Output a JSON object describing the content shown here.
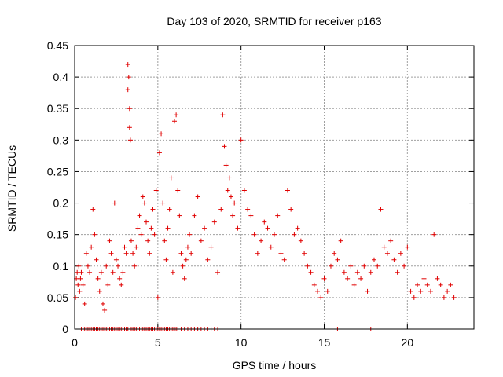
{
  "chart_data": {
    "type": "scatter",
    "title": "Day 103 of 2020, SRMTID for receiver p163",
    "xlabel": "GPS time / hours",
    "ylabel": "SRMTID / TECUs",
    "xlim": [
      0,
      24
    ],
    "ylim": [
      0,
      0.45
    ],
    "xticks": [
      0,
      5,
      10,
      15,
      20
    ],
    "yticks": [
      0,
      0.05,
      0.1,
      0.15,
      0.2,
      0.25,
      0.3,
      0.35,
      0.4,
      0.45
    ],
    "xtick_labels": [
      "0",
      "5",
      "10",
      "15",
      "20"
    ],
    "ytick_labels": [
      "0",
      "0.05",
      "0.1",
      "0.15",
      "0.2",
      "0.25",
      "0.3",
      "0.35",
      "0.4",
      "0.45"
    ],
    "grid": true,
    "marker": "+",
    "color": "#e00000",
    "series": [
      {
        "name": "p163",
        "x": [
          0.05,
          0.1,
          0.15,
          0.2,
          0.25,
          0.3,
          0.35,
          0.4,
          0.5,
          0.6,
          0.7,
          0.8,
          0.9,
          1.0,
          1.1,
          1.2,
          1.3,
          1.4,
          1.5,
          1.6,
          1.7,
          1.8,
          1.9,
          2.0,
          2.1,
          2.2,
          2.3,
          2.4,
          2.5,
          2.6,
          2.7,
          2.8,
          2.9,
          3.0,
          3.1,
          3.2,
          3.2,
          3.25,
          3.3,
          3.3,
          3.35,
          3.4,
          3.5,
          3.6,
          3.7,
          3.8,
          3.9,
          4.0,
          4.1,
          4.2,
          4.3,
          4.4,
          4.5,
          4.6,
          4.7,
          4.8,
          4.9,
          5.0,
          5.1,
          5.2,
          5.3,
          5.4,
          5.5,
          5.6,
          5.7,
          5.8,
          5.9,
          6.0,
          6.1,
          6.2,
          6.3,
          6.4,
          6.5,
          6.6,
          6.7,
          6.8,
          6.9,
          7.0,
          7.2,
          7.4,
          7.6,
          7.8,
          8.0,
          8.2,
          8.4,
          8.6,
          8.8,
          8.9,
          9.0,
          9.1,
          9.2,
          9.3,
          9.4,
          9.5,
          9.6,
          9.8,
          10.0,
          10.2,
          10.4,
          10.6,
          10.8,
          11.0,
          11.2,
          11.4,
          11.6,
          11.8,
          12.0,
          12.2,
          12.4,
          12.6,
          12.8,
          13.0,
          13.2,
          13.4,
          13.6,
          13.8,
          14.0,
          14.2,
          14.4,
          14.6,
          14.8,
          15.0,
          15.2,
          15.4,
          15.6,
          15.8,
          16.0,
          16.2,
          16.4,
          16.6,
          16.8,
          17.0,
          17.2,
          17.4,
          17.6,
          17.8,
          18.0,
          18.2,
          18.4,
          18.6,
          18.8,
          19.0,
          19.2,
          19.4,
          19.6,
          19.8,
          20.0,
          20.2,
          20.4,
          20.6,
          20.8,
          21.0,
          21.2,
          21.4,
          21.6,
          21.8,
          22.0,
          22.2,
          22.4,
          22.6,
          22.8
        ],
        "y": [
          0.05,
          0.08,
          0.09,
          0.07,
          0.1,
          0.06,
          0.08,
          0.09,
          0.07,
          0.04,
          0.12,
          0.1,
          0.09,
          0.13,
          0.19,
          0.15,
          0.11,
          0.08,
          0.06,
          0.09,
          0.04,
          0.03,
          0.1,
          0.07,
          0.14,
          0.12,
          0.09,
          0.2,
          0.11,
          0.1,
          0.08,
          0.07,
          0.09,
          0.13,
          0.12,
          0.38,
          0.42,
          0.4,
          0.35,
          0.32,
          0.3,
          0.14,
          0.12,
          0.1,
          0.13,
          0.16,
          0.18,
          0.15,
          0.21,
          0.2,
          0.17,
          0.14,
          0.12,
          0.16,
          0.19,
          0.15,
          0.22,
          0.05,
          0.28,
          0.31,
          0.2,
          0.14,
          0.11,
          0.16,
          0.19,
          0.24,
          0.09,
          0.33,
          0.34,
          0.22,
          0.18,
          0.12,
          0.1,
          0.08,
          0.11,
          0.13,
          0.15,
          0.12,
          0.18,
          0.21,
          0.14,
          0.16,
          0.11,
          0.13,
          0.17,
          0.09,
          0.19,
          0.34,
          0.29,
          0.26,
          0.22,
          0.24,
          0.21,
          0.18,
          0.2,
          0.16,
          0.3,
          0.22,
          0.19,
          0.18,
          0.15,
          0.12,
          0.14,
          0.17,
          0.16,
          0.13,
          0.15,
          0.18,
          0.12,
          0.11,
          0.22,
          0.19,
          0.15,
          0.16,
          0.14,
          0.12,
          0.1,
          0.09,
          0.07,
          0.06,
          0.05,
          0.08,
          0.06,
          0.1,
          0.12,
          0.11,
          0.14,
          0.09,
          0.08,
          0.1,
          0.07,
          0.09,
          0.08,
          0.1,
          0.06,
          0.09,
          0.11,
          0.1,
          0.19,
          0.13,
          0.12,
          0.14,
          0.11,
          0.09,
          0.12,
          0.1,
          0.13,
          0.06,
          0.05,
          0.07,
          0.06,
          0.08,
          0.07,
          0.06,
          0.15,
          0.08,
          0.07,
          0.05,
          0.06,
          0.07,
          0.05
        ]
      }
    ],
    "zero_points_x": [
      0.4,
      0.5,
      0.6,
      0.7,
      0.8,
      0.9,
      1.0,
      1.1,
      1.2,
      1.3,
      1.4,
      1.5,
      1.6,
      1.7,
      1.8,
      1.9,
      2.0,
      2.1,
      2.2,
      2.3,
      2.4,
      2.5,
      2.6,
      2.7,
      2.8,
      2.9,
      3.0,
      3.1,
      3.2,
      3.4,
      3.5,
      3.6,
      3.7,
      3.8,
      3.9,
      4.0,
      4.1,
      4.2,
      4.3,
      4.4,
      4.5,
      4.6,
      4.7,
      4.8,
      4.9,
      5.0,
      5.1,
      5.2,
      5.3,
      5.4,
      5.5,
      5.6,
      5.7,
      5.8,
      5.9,
      6.0,
      6.1,
      6.2,
      6.4,
      6.6,
      6.8,
      7.0,
      7.2,
      7.4,
      7.6,
      7.8,
      8.0,
      8.2,
      8.4,
      8.6,
      15.8,
      17.8
    ]
  }
}
